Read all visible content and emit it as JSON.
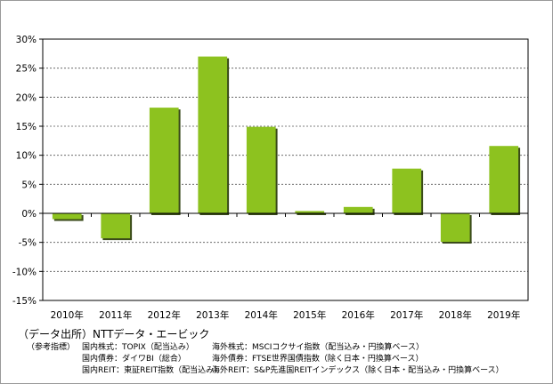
{
  "chart_data": {
    "type": "bar",
    "categories": [
      "2010年",
      "2011年",
      "2012年",
      "2013年",
      "2014年",
      "2015年",
      "2016年",
      "2017年",
      "2018年",
      "2019年"
    ],
    "values": [
      -1.0,
      -4.3,
      18.2,
      27.0,
      14.9,
      0.4,
      1.1,
      7.7,
      -4.9,
      11.6
    ],
    "y_ticks": [
      "30%",
      "25%",
      "20%",
      "15%",
      "10%",
      "5%",
      "0%",
      "-5%",
      "-10%",
      "-15%"
    ],
    "ylim": [
      -15,
      30
    ],
    "y_step": 5,
    "grid": true,
    "bar_color": "#8dc21f",
    "bar_shadow_color": "#3a4a1a"
  },
  "source_text": "（データ出所）NTTデータ・エービック",
  "reference": {
    "prefix": "（参考指標）",
    "left": [
      "国内株式：TOPIX（配当込み）",
      "国内債券：ダイワBI（総合）",
      "国内REIT：東証REIT指数（配当込み）"
    ],
    "right": [
      "海外株式：MSCIコクサイ指数（配当込み・円換算ベース）",
      "海外債券：FTSE世界国債指数（除く日本・円換算ベース）",
      "海外REIT：S&P先進国REITインデックス（除く日本・配当込み・円換算ベース）"
    ]
  }
}
